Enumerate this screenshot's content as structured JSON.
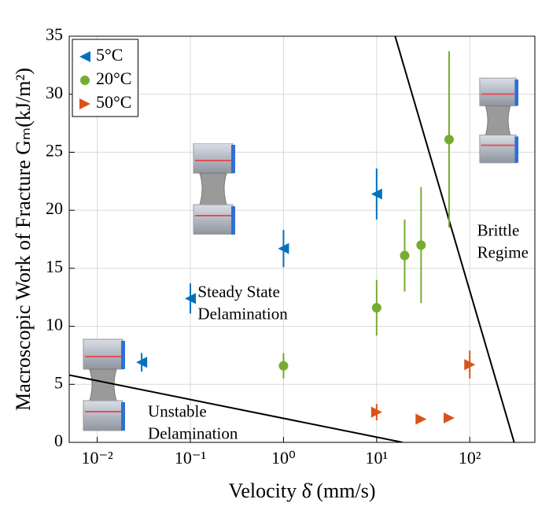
{
  "chart_data": {
    "type": "scatter",
    "xlabel": "Velocity δ̇ (mm/s)",
    "ylabel": "Macroscopic Work of Fracture Gₘ(kJ/m²)",
    "xscale": "log",
    "xlim": [
      0.005,
      500
    ],
    "ylim": [
      0,
      35
    ],
    "xticks": [
      {
        "value": 0.01,
        "label": "10⁻²"
      },
      {
        "value": 0.1,
        "label": "10⁻¹"
      },
      {
        "value": 1,
        "label": "10⁰"
      },
      {
        "value": 10,
        "label": "10¹"
      },
      {
        "value": 100,
        "label": "10²"
      }
    ],
    "yticks": [
      0,
      5,
      10,
      15,
      20,
      25,
      30,
      35
    ],
    "grid": true,
    "legend": "upper left",
    "series": [
      {
        "name": "5°C",
        "color": "#0072bd",
        "marker": "triangle-left",
        "x": [
          0.03,
          0.1,
          1,
          10
        ],
        "values": [
          6.9,
          12.4,
          16.7,
          21.4
        ],
        "errors": [
          0.8,
          1.3,
          1.6,
          2.2
        ]
      },
      {
        "name": "20°C",
        "color": "#77ac30",
        "marker": "circle",
        "x": [
          1,
          10,
          20,
          30,
          60
        ],
        "values": [
          6.6,
          11.6,
          16.1,
          17.0,
          26.1
        ],
        "errors": [
          1.1,
          2.4,
          3.1,
          5.0,
          7.6
        ]
      },
      {
        "name": "50°C",
        "color": "#d95319",
        "marker": "triangle-right",
        "x": [
          10,
          30,
          60,
          100
        ],
        "values": [
          2.6,
          2.0,
          2.1,
          6.7
        ],
        "errors": [
          0.7,
          0.2,
          0.2,
          1.2
        ]
      }
    ],
    "boundaries": [
      {
        "x": [
          15.8,
          300
        ],
        "values": [
          35,
          0
        ]
      },
      {
        "x": [
          0.005,
          19
        ],
        "values": [
          5.8,
          0
        ]
      }
    ],
    "annotations": [
      {
        "lines": [
          "Steady State",
          "Delamination"
        ],
        "x": 0.12,
        "y": 12.5
      },
      {
        "lines": [
          "Unstable",
          "Delamination"
        ],
        "x": 0.035,
        "y": 2.2
      },
      {
        "lines": [
          "Brittle",
          "Regime"
        ],
        "x": 120,
        "y": 17.8
      }
    ]
  }
}
